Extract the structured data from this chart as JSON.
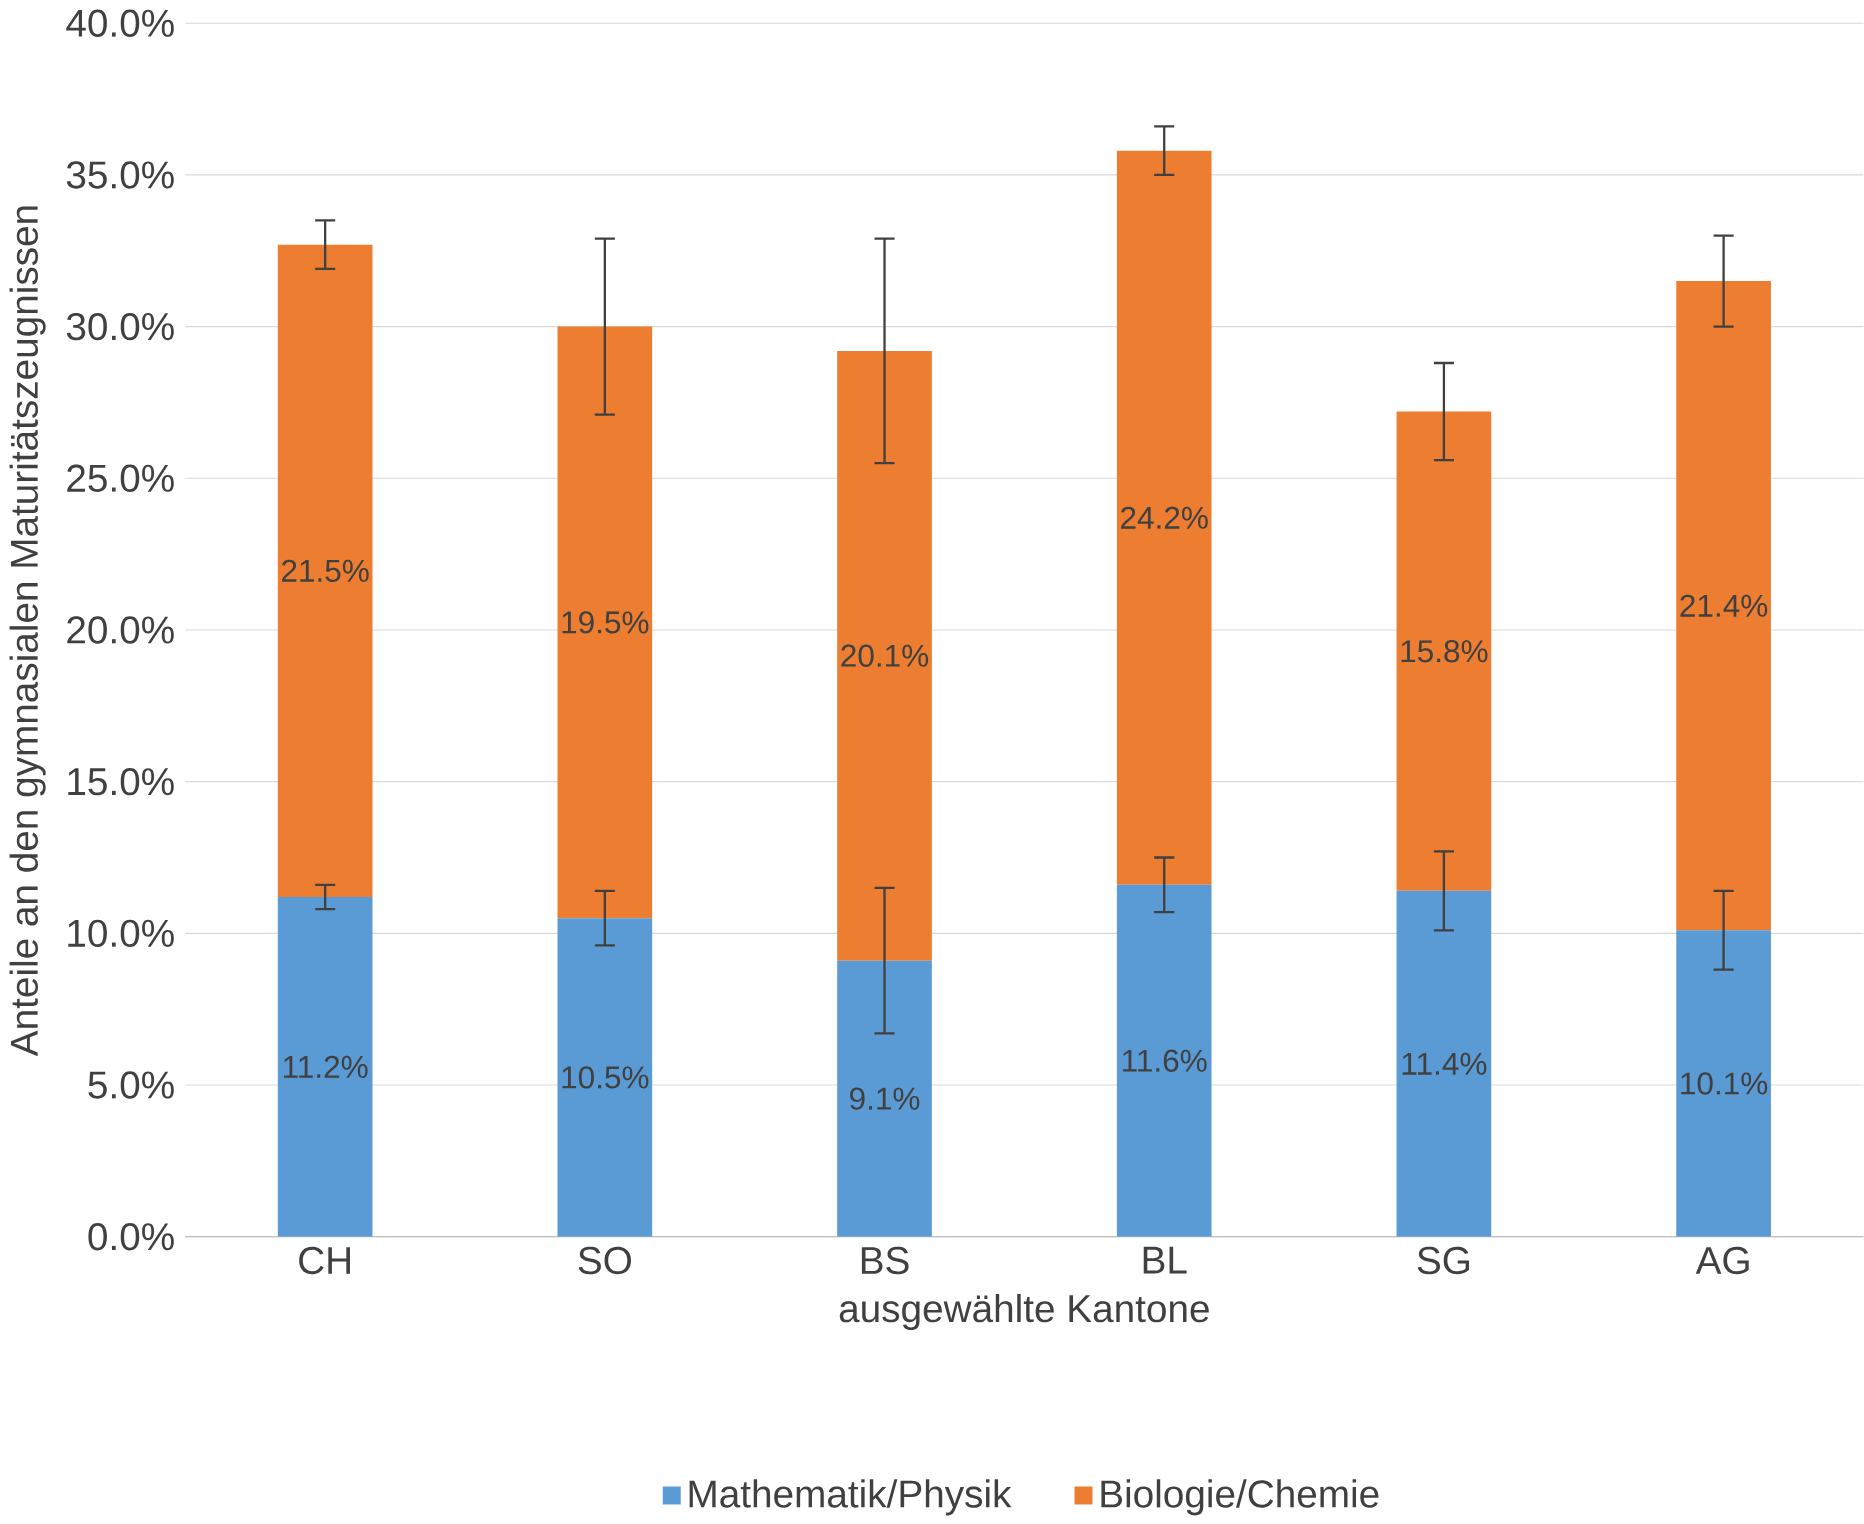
{
  "chart_data": {
    "type": "bar",
    "stacked": true,
    "xlabel": "ausgewählte Kantone",
    "ylabel": "Anteile an den gymnasialen Maturitätszeugnissen",
    "categories": [
      "CH",
      "SO",
      "BS",
      "BL",
      "SG",
      "AG"
    ],
    "series": [
      {
        "name": "Mathematik/Physik",
        "color": "#5b9bd5",
        "values": [
          11.2,
          10.5,
          9.1,
          11.6,
          11.4,
          10.1
        ],
        "value_labels": [
          "11.2%",
          "10.5%",
          "9.1%",
          "11.6%",
          "11.4%",
          "10.1%"
        ],
        "errors": [
          0.4,
          0.9,
          2.4,
          0.9,
          1.3,
          1.3
        ]
      },
      {
        "name": "Biologie/Chemie",
        "color": "#ed7d31",
        "values": [
          21.5,
          19.5,
          20.1,
          24.2,
          15.8,
          21.4
        ],
        "value_labels": [
          "21.5%",
          "19.5%",
          "20.1%",
          "24.2%",
          "15.8%",
          "21.4%"
        ],
        "errors": [
          0.8,
          2.9,
          3.7,
          0.8,
          1.6,
          1.5
        ]
      }
    ],
    "ylim": [
      0,
      40
    ],
    "yticks": [
      {
        "value": 0,
        "label": "0.0%"
      },
      {
        "value": 5,
        "label": "5.0%"
      },
      {
        "value": 10,
        "label": "10.0%"
      },
      {
        "value": 15,
        "label": "15.0%"
      },
      {
        "value": 20,
        "label": "20.0%"
      },
      {
        "value": 25,
        "label": "25.0%"
      },
      {
        "value": 30,
        "label": "30.0%"
      },
      {
        "value": 35,
        "label": "35.0%"
      },
      {
        "value": 40,
        "label": "40.0%"
      }
    ],
    "grid": "y",
    "legend": "bottom"
  }
}
